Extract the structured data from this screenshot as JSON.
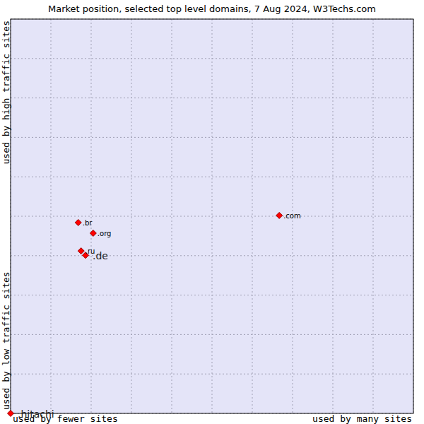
{
  "chart_data": {
    "type": "scatter",
    "title": "Market position, selected top level domains, 7 Aug 2024, W3Techs.com",
    "x_labels": [
      "used by fewer sites",
      "used by many sites"
    ],
    "y_labels": [
      "used by low traffic sites",
      "used by high traffic sites"
    ],
    "xlim": [
      0,
      10
    ],
    "ylim": [
      0,
      10
    ],
    "xticks": [
      0,
      1,
      2,
      3,
      4,
      5,
      6,
      7,
      8,
      9,
      10
    ],
    "yticks": [
      0,
      1,
      2,
      3,
      4,
      5,
      6,
      7,
      8,
      9,
      10
    ],
    "grid": true,
    "tick_labels": false,
    "marker": "diamond",
    "color": "#ff0000",
    "series": [
      {
        "name": ".com",
        "type": "scatter",
        "x": [
          6.67
        ],
        "values": [
          5.02
        ]
      },
      {
        "name": ".br",
        "type": "scatter",
        "x": [
          1.68
        ],
        "values": [
          4.84
        ]
      },
      {
        "name": ".org",
        "type": "scatter",
        "x": [
          2.05
        ],
        "values": [
          4.57
        ]
      },
      {
        "name": ".ru",
        "type": "scatter",
        "x": [
          1.75
        ],
        "values": [
          4.12
        ]
      },
      {
        "name": ".de",
        "type": "highlight",
        "x": [
          1.86
        ],
        "values": [
          4.01
        ]
      },
      {
        "name": ".hitachi",
        "type": "highlight",
        "x": [
          0
        ],
        "values": [
          0
        ]
      }
    ]
  }
}
